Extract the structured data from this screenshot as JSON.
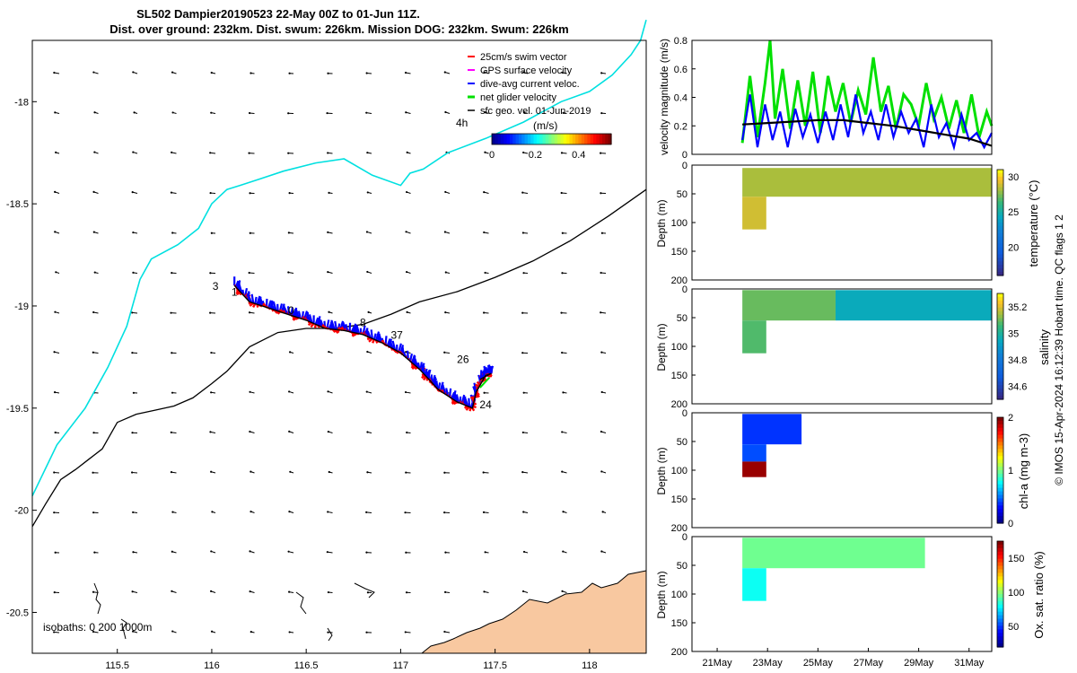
{
  "title": {
    "line1": "SL502 Dampier20190523 22-May 00Z to 01-Jun 11Z.",
    "line2": "Dist. over ground: 232km. Dist. swum: 226km. Mission DOG: 232km. Swum: 226km"
  },
  "side_note": "© IMOS 15-Apr-2024 16:12:39 Hobart time. QC flags 1  2",
  "colors": {
    "coast": "#00e0e0",
    "isobath": "#000000",
    "land": "#f8c8a0",
    "net": "#00e000",
    "dive": "#0000ff",
    "swim": "#ff0000",
    "track": "#000000"
  },
  "chart_data": [
    {
      "type": "scatter",
      "name": "map",
      "xlim": [
        115.05,
        118.3
      ],
      "ylim": [
        -20.7,
        -17.7
      ],
      "y_reversed": true,
      "xticks": [
        "115.5",
        "116",
        "116.5",
        "117",
        "117.5",
        "118"
      ],
      "xtick_values": [
        115.5,
        116,
        116.5,
        117,
        117.5,
        118
      ],
      "yticks": [
        "-18",
        "-18.5",
        "-19",
        "-19.5",
        "-20",
        "-20.5"
      ],
      "ytick_values": [
        -18,
        -18.5,
        -19,
        -19.5,
        -20,
        -20.5
      ],
      "legend": [
        {
          "label": "25cm/s swim vector",
          "color": "#ff0000"
        },
        {
          "label": "GPS surface velocity",
          "color": "#ff00ff"
        },
        {
          "label": "dive-avg current veloc.",
          "color": "#0000ff"
        },
        {
          "label": "net glider velocity",
          "color": "#00e000"
        },
        {
          "label": "sfc geo. vel. 01-Jun-2019",
          "color": "#000000"
        }
      ],
      "colorbar": {
        "label": "(m/s)",
        "ticks": [
          "0",
          "0.2",
          "0.4"
        ],
        "tick_values": [
          0,
          0.2,
          0.4
        ],
        "range": [
          0,
          0.55
        ]
      },
      "annotation_4h": "4h",
      "isobath_label": "isobaths: 0   200  1000m",
      "coast_line": {
        "lon": [
          115.05,
          115.18,
          115.33,
          115.45,
          115.55,
          115.62,
          115.68,
          115.82,
          115.93,
          116.0,
          116.08,
          116.15,
          116.25,
          116.38,
          116.55,
          116.7,
          116.85,
          117.0,
          117.05,
          117.12,
          117.25,
          117.45,
          117.65,
          117.85,
          118.0,
          118.12,
          118.22,
          118.27,
          118.3
        ],
        "lat": [
          -19.93,
          -19.68,
          -19.5,
          -19.3,
          -19.1,
          -18.87,
          -18.77,
          -18.7,
          -18.62,
          -18.5,
          -18.43,
          -18.41,
          -18.38,
          -18.34,
          -18.3,
          -18.28,
          -18.36,
          -18.41,
          -18.35,
          -18.33,
          -18.25,
          -18.18,
          -18.1,
          -18.0,
          -17.95,
          -17.87,
          -17.77,
          -17.7,
          -17.6
        ]
      },
      "isobath_1000": {
        "lon": [
          115.05,
          115.12,
          115.2,
          115.28,
          115.35,
          115.42,
          115.5,
          115.6,
          115.7,
          115.8,
          115.9,
          116.0,
          116.08,
          116.2,
          116.35,
          116.5,
          116.65,
          116.8,
          116.95,
          117.1,
          117.3,
          117.5,
          117.7,
          117.9,
          118.1,
          118.3
        ],
        "lat": [
          -20.08,
          -19.97,
          -19.85,
          -19.8,
          -19.75,
          -19.7,
          -19.57,
          -19.53,
          -19.51,
          -19.49,
          -19.45,
          -19.38,
          -19.32,
          -19.2,
          -19.13,
          -19.11,
          -19.11,
          -19.09,
          -19.04,
          -18.98,
          -18.93,
          -18.86,
          -18.78,
          -18.68,
          -18.56,
          -18.43
        ]
      },
      "glider_track": {
        "lon": [
          116.12,
          116.2,
          116.3,
          116.4,
          116.5,
          116.6,
          116.7,
          116.8,
          116.9,
          117.0,
          117.1,
          117.15,
          117.2,
          117.3,
          117.38,
          117.4,
          117.45,
          117.48,
          117.42
        ],
        "lat": [
          -18.9,
          -18.98,
          -19.01,
          -19.04,
          -19.07,
          -19.11,
          -19.12,
          -19.14,
          -19.18,
          -19.23,
          -19.31,
          -19.36,
          -19.41,
          -19.47,
          -19.5,
          -19.42,
          -19.34,
          -19.33,
          -19.36
        ]
      },
      "waypoint_labels": [
        {
          "text": "3",
          "lon": 116.02,
          "lat": -18.92
        },
        {
          "text": "1",
          "lon": 116.12,
          "lat": -18.95
        },
        {
          "text": "0",
          "lon": 116.42,
          "lat": -19.04
        },
        {
          "text": "8",
          "lon": 116.8,
          "lat": -19.1
        },
        {
          "text": "37",
          "lon": 116.98,
          "lat": -19.16
        },
        {
          "text": "26",
          "lon": 117.33,
          "lat": -19.28
        },
        {
          "text": "24",
          "lon": 117.45,
          "lat": -19.5
        }
      ]
    },
    {
      "type": "line",
      "name": "velocity",
      "ylabel": "velocity magnitude (m/s)",
      "ylim": [
        0,
        0.8
      ],
      "yticks": [
        "0",
        "0.2",
        "0.4",
        "0.6",
        "0.8"
      ],
      "ytick_values": [
        0,
        0.2,
        0.4,
        0.6,
        0.8
      ],
      "xlim": [
        20.0,
        31.9
      ],
      "series": [
        {
          "name": "net glider velocity",
          "color": "#00e000",
          "x": [
            22.0,
            22.3,
            22.6,
            22.9,
            23.1,
            23.3,
            23.6,
            23.9,
            24.2,
            24.5,
            24.8,
            25.1,
            25.4,
            25.7,
            26.0,
            26.3,
            26.6,
            26.9,
            27.2,
            27.5,
            27.8,
            28.1,
            28.4,
            28.7,
            29.0,
            29.3,
            29.6,
            29.9,
            30.2,
            30.5,
            30.8,
            31.1,
            31.4,
            31.7,
            31.9
          ],
          "y": [
            0.08,
            0.55,
            0.12,
            0.5,
            0.8,
            0.25,
            0.6,
            0.18,
            0.52,
            0.2,
            0.58,
            0.15,
            0.55,
            0.3,
            0.5,
            0.22,
            0.45,
            0.28,
            0.68,
            0.3,
            0.48,
            0.18,
            0.42,
            0.35,
            0.2,
            0.5,
            0.25,
            0.4,
            0.18,
            0.38,
            0.15,
            0.42,
            0.12,
            0.3,
            0.2
          ]
        },
        {
          "name": "dive-avg current veloc.",
          "color": "#0000ff",
          "x": [
            22.0,
            22.3,
            22.6,
            22.9,
            23.2,
            23.5,
            23.8,
            24.1,
            24.4,
            24.7,
            25.0,
            25.3,
            25.6,
            25.9,
            26.2,
            26.5,
            26.8,
            27.1,
            27.4,
            27.7,
            28.0,
            28.3,
            28.6,
            28.9,
            29.2,
            29.5,
            29.8,
            30.1,
            30.4,
            30.7,
            31.0,
            31.3,
            31.6,
            31.9
          ],
          "y": [
            0.1,
            0.42,
            0.05,
            0.35,
            0.1,
            0.3,
            0.05,
            0.32,
            0.12,
            0.28,
            0.08,
            0.3,
            0.1,
            0.35,
            0.12,
            0.42,
            0.15,
            0.3,
            0.1,
            0.35,
            0.12,
            0.3,
            0.15,
            0.25,
            0.05,
            0.35,
            0.12,
            0.22,
            0.05,
            0.28,
            0.1,
            0.15,
            0.05,
            0.15
          ]
        },
        {
          "name": "sfc geo. vel. 01-Jun-2019",
          "color": "#000000",
          "x": [
            22.0,
            23.0,
            24.0,
            25.0,
            26.0,
            27.0,
            28.0,
            29.0,
            30.0,
            31.0,
            31.9
          ],
          "y": [
            0.21,
            0.22,
            0.23,
            0.24,
            0.24,
            0.22,
            0.2,
            0.17,
            0.14,
            0.11,
            0.06
          ]
        }
      ]
    },
    {
      "type": "heatmap",
      "name": "temperature",
      "ylabel": "Depth (m)",
      "clabel": "temperature (°C)",
      "clim": [
        16,
        31
      ],
      "cticks": [
        "20",
        "25",
        "30"
      ],
      "ctick_values": [
        20,
        25,
        30
      ],
      "yticks": [
        "0",
        "50",
        "100",
        "150",
        "200"
      ],
      "ytick_values": [
        0,
        50,
        100,
        150,
        200
      ],
      "ylim": [
        0,
        200
      ],
      "blocks": [
        {
          "x0": 22.0,
          "x1": 31.9,
          "d0": 5,
          "d1": 55,
          "value": 28.3
        },
        {
          "x0": 22.0,
          "x1": 22.95,
          "d0": 55,
          "d1": 112,
          "value": 29.0
        }
      ]
    },
    {
      "type": "heatmap",
      "name": "salinity",
      "ylabel": "Depth (m)",
      "clabel": "salinity",
      "clim": [
        34.5,
        35.3
      ],
      "cticks": [
        "34.6",
        "34.8",
        "35",
        "35.2"
      ],
      "ctick_values": [
        34.6,
        34.8,
        35,
        35.2
      ],
      "yticks": [
        "0",
        "50",
        "100",
        "150",
        "200"
      ],
      "ytick_values": [
        0,
        50,
        100,
        150,
        200
      ],
      "ylim": [
        0,
        200
      ],
      "blocks": [
        {
          "x0": 22.0,
          "x1": 25.7,
          "d0": 2,
          "d1": 55,
          "value": 35.1
        },
        {
          "x0": 22.0,
          "x1": 22.95,
          "d0": 55,
          "d1": 112,
          "value": 35.08
        },
        {
          "x0": 25.7,
          "x1": 31.9,
          "d0": 2,
          "d1": 55,
          "value": 34.95
        }
      ]
    },
    {
      "type": "heatmap",
      "name": "chla",
      "ylabel": "Depth (m)",
      "clabel": "chl-a (mg m-3)",
      "clim": [
        0,
        2
      ],
      "cticks": [
        "0",
        "1",
        "2"
      ],
      "ctick_values": [
        0,
        1,
        2
      ],
      "yticks": [
        "0",
        "50",
        "100",
        "150",
        "200"
      ],
      "ytick_values": [
        0,
        50,
        100,
        150,
        200
      ],
      "ylim": [
        0,
        200
      ],
      "blocks": [
        {
          "x0": 22.0,
          "x1": 24.35,
          "d0": 2,
          "d1": 55,
          "value": 0.35
        },
        {
          "x0": 22.0,
          "x1": 22.95,
          "d0": 55,
          "d1": 85,
          "value": 0.4
        },
        {
          "x0": 22.0,
          "x1": 22.95,
          "d0": 85,
          "d1": 112,
          "value": 1.95
        }
      ]
    },
    {
      "type": "heatmap",
      "name": "oxygen",
      "ylabel": "Depth (m)",
      "clabel": "Ox. sat. ratio (%)",
      "clim": [
        20,
        175
      ],
      "cticks": [
        "50",
        "100",
        "150"
      ],
      "ctick_values": [
        50,
        100,
        150
      ],
      "yticks": [
        "0",
        "50",
        "100",
        "150",
        "200"
      ],
      "ytick_values": [
        0,
        50,
        100,
        150,
        200
      ],
      "ylim": [
        0,
        200
      ],
      "xticks": [
        "21May",
        "23May",
        "25May",
        "27May",
        "29May",
        "31May"
      ],
      "xtick_values": [
        21,
        23,
        25,
        27,
        29,
        31
      ],
      "blocks": [
        {
          "x0": 22.0,
          "x1": 29.25,
          "d0": 2,
          "d1": 55,
          "value": 95
        },
        {
          "x0": 22.0,
          "x1": 22.95,
          "d0": 55,
          "d1": 112,
          "value": 80
        }
      ]
    }
  ]
}
